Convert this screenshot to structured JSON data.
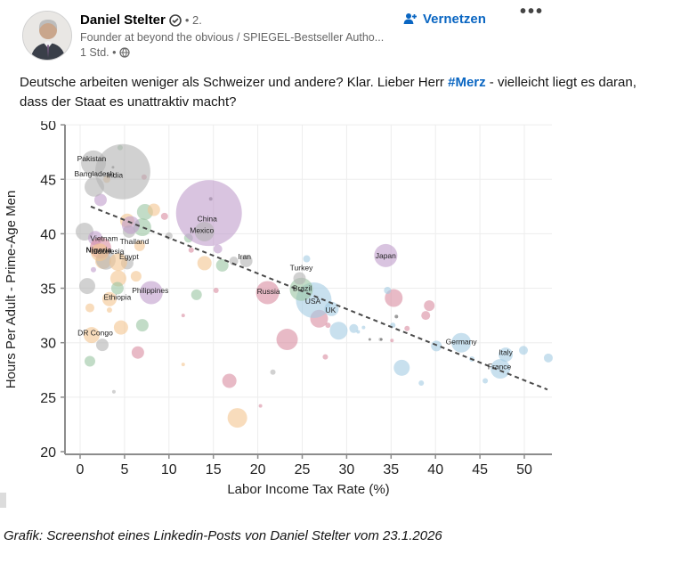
{
  "post": {
    "author": "Daniel Stelter",
    "degree": "• 2.",
    "headline": "Founder at beyond the obvious / SPIEGEL-Bestseller Autho...",
    "time": "1 Std. •",
    "connect_label": "Vernetzen",
    "more_label": "•••",
    "text_before_hashtag": "Deutsche arbeiten weniger als Schweizer und andere? Klar. Lieber Herr ",
    "hashtag": "#Merz",
    "text_after_hashtag": " - vielleicht liegt es daran, dass der Staat es unattraktiv macht?",
    "accent_color": "#0a66c2"
  },
  "caption": "Grafik: Screenshot eines Linkedin-Posts von Daniel Stelter vom 23.1.2026",
  "chart_data": {
    "type": "scatter",
    "xlabel": "Labor Income Tax Rate (%)",
    "ylabel": "Hours Per Adult - Prime-Age Men",
    "xlim": [
      0,
      53
    ],
    "ylim": [
      20,
      50
    ],
    "xticks": [
      0,
      5,
      10,
      15,
      20,
      25,
      30,
      35,
      40,
      45,
      50
    ],
    "yticks": [
      20,
      25,
      30,
      35,
      40,
      45,
      50
    ],
    "grid": true,
    "trendline": {
      "x1": 1.2,
      "y1": 42.5,
      "x2": 52.6,
      "y2": 25.7
    },
    "colors": {
      "gray": "#b3b3b3",
      "purple": "#bf9ccc",
      "pink": "#d98ca0",
      "green": "#99c4a1",
      "blue": "#a3cce3",
      "orange": "#f3c48f",
      "dark": "#5a5a5a"
    },
    "labeled_points": [
      {
        "name": "Pakistan",
        "x": 1.5,
        "y": 46.5,
        "r": 14,
        "c": "gray",
        "lx": 1.3,
        "ly": 46.9
      },
      {
        "name": "India",
        "x": 4.8,
        "y": 45.7,
        "r": 31,
        "c": "gray",
        "lx": 3.9,
        "ly": 45.4
      },
      {
        "name": "Bangladesh",
        "x": 1.6,
        "y": 44.3,
        "r": 11,
        "c": "gray",
        "lx": 1.6,
        "ly": 45.5
      },
      {
        "name": "China",
        "x": 14.5,
        "y": 41.9,
        "r": 37,
        "c": "purple",
        "lx": 14.3,
        "ly": 41.4
      },
      {
        "name": "Mexico",
        "x": 14.0,
        "y": 40.2,
        "r": 11,
        "c": "gray",
        "lx": 13.7,
        "ly": 40.3
      },
      {
        "name": "Vietnam",
        "x": 2.3,
        "y": 38.7,
        "r": 12,
        "c": "pink",
        "lx": 2.7,
        "ly": 39.6
      },
      {
        "name": "Thailand",
        "x": 5.7,
        "y": 40.8,
        "r": 10,
        "c": "purple",
        "lx": 6.1,
        "ly": 39.3
      },
      {
        "name": "Nigeria",
        "x": 2.2,
        "y": 38.3,
        "r": 10,
        "c": "orange",
        "lx": 2.1,
        "ly": 38.5,
        "bold": true
      },
      {
        "name": "Indonesia",
        "x": 2.9,
        "y": 37.6,
        "r": 11,
        "c": "gray",
        "lx": 3.1,
        "ly": 38.4
      },
      {
        "name": "Egypt",
        "x": 4.3,
        "y": 37.4,
        "r": 10,
        "c": "orange",
        "lx": 5.5,
        "ly": 37.9
      },
      {
        "name": "Iran",
        "x": 18.7,
        "y": 37.5,
        "r": 7,
        "c": "gray",
        "lx": 18.5,
        "ly": 37.9
      },
      {
        "name": "Turkey",
        "x": 24.7,
        "y": 35.9,
        "r": 7,
        "c": "gray",
        "lx": 24.9,
        "ly": 36.9
      },
      {
        "name": "Japan",
        "x": 34.4,
        "y": 38.0,
        "r": 13,
        "c": "purple",
        "lx": 34.4,
        "ly": 38.0
      },
      {
        "name": "Philippines",
        "x": 8.0,
        "y": 34.6,
        "r": 13,
        "c": "purple",
        "lx": 7.9,
        "ly": 34.8
      },
      {
        "name": "Ethiopia",
        "x": 3.3,
        "y": 34.0,
        "r": 8,
        "c": "orange",
        "lx": 4.2,
        "ly": 34.2
      },
      {
        "name": "Russia",
        "x": 21.1,
        "y": 34.6,
        "r": 13,
        "c": "pink",
        "lx": 21.2,
        "ly": 34.7
      },
      {
        "name": "Brazil",
        "x": 24.9,
        "y": 34.9,
        "r": 13,
        "c": "green",
        "lx": 25.0,
        "ly": 35.0
      },
      {
        "name": "USA",
        "x": 26.3,
        "y": 33.9,
        "r": 20,
        "c": "blue",
        "lx": 26.2,
        "ly": 33.8
      },
      {
        "name": "UK",
        "x": 28.3,
        "y": 33.1,
        "r": 8,
        "c": "blue",
        "lx": 28.2,
        "ly": 33.0
      },
      {
        "name": "DR Congo",
        "x": 1.3,
        "y": 30.7,
        "r": 9,
        "c": "orange",
        "lx": 1.7,
        "ly": 30.9
      },
      {
        "name": "Germany",
        "x": 42.9,
        "y": 30.0,
        "r": 11,
        "c": "blue",
        "lx": 42.9,
        "ly": 30.1
      },
      {
        "name": "Italy",
        "x": 47.9,
        "y": 28.9,
        "r": 8,
        "c": "blue",
        "lx": 47.9,
        "ly": 29.1
      },
      {
        "name": "France",
        "x": 47.3,
        "y": 27.6,
        "r": 11,
        "c": "blue",
        "lx": 47.2,
        "ly": 27.8
      }
    ],
    "points": [
      {
        "x": 0.5,
        "y": 40.2,
        "r": 10,
        "c": "gray"
      },
      {
        "x": 5.5,
        "y": 40.2,
        "r": 7,
        "c": "gray"
      },
      {
        "x": 10.0,
        "y": 39.8,
        "r": 4,
        "c": "gray"
      },
      {
        "x": 17.3,
        "y": 37.5,
        "r": 5,
        "c": "gray"
      },
      {
        "x": 0.8,
        "y": 35.2,
        "r": 9,
        "c": "gray"
      },
      {
        "x": 5.3,
        "y": 37.3,
        "r": 7,
        "c": "gray"
      },
      {
        "x": 2.5,
        "y": 29.8,
        "r": 7,
        "c": "gray"
      },
      {
        "x": 3.8,
        "y": 25.5,
        "r": 2,
        "c": "gray"
      },
      {
        "x": 21.7,
        "y": 27.3,
        "r": 3,
        "c": "gray"
      },
      {
        "x": 33.8,
        "y": 30.3,
        "r": 2,
        "c": "gray"
      },
      {
        "x": 14.7,
        "y": 43.2,
        "r": 2,
        "c": "dark"
      },
      {
        "x": 3.7,
        "y": 46.1,
        "r": 1.5,
        "c": "dark"
      },
      {
        "x": 2.3,
        "y": 43.1,
        "r": 7,
        "c": "purple"
      },
      {
        "x": 1.7,
        "y": 39.6,
        "r": 8,
        "c": "purple"
      },
      {
        "x": 1.5,
        "y": 36.7,
        "r": 3,
        "c": "purple"
      },
      {
        "x": 15.5,
        "y": 38.6,
        "r": 5,
        "c": "purple"
      },
      {
        "x": 26.9,
        "y": 32.2,
        "r": 10,
        "c": "pink"
      },
      {
        "x": 23.3,
        "y": 30.3,
        "r": 12,
        "c": "pink"
      },
      {
        "x": 16.8,
        "y": 26.5,
        "r": 8,
        "c": "pink"
      },
      {
        "x": 35.3,
        "y": 34.1,
        "r": 10,
        "c": "pink"
      },
      {
        "x": 39.3,
        "y": 33.4,
        "r": 6,
        "c": "pink"
      },
      {
        "x": 38.9,
        "y": 32.5,
        "r": 5,
        "c": "pink"
      },
      {
        "x": 27.6,
        "y": 28.7,
        "r": 3,
        "c": "pink"
      },
      {
        "x": 27.9,
        "y": 31.6,
        "r": 3,
        "c": "pink"
      },
      {
        "x": 9.5,
        "y": 41.6,
        "r": 4,
        "c": "pink"
      },
      {
        "x": 12.5,
        "y": 38.5,
        "r": 3,
        "c": "pink"
      },
      {
        "x": 7.2,
        "y": 45.2,
        "r": 3,
        "c": "pink"
      },
      {
        "x": 11.6,
        "y": 32.5,
        "r": 2,
        "c": "pink"
      },
      {
        "x": 6.5,
        "y": 29.1,
        "r": 7,
        "c": "pink"
      },
      {
        "x": 20.3,
        "y": 24.2,
        "r": 2,
        "c": "pink"
      },
      {
        "x": 15.3,
        "y": 34.8,
        "r": 3,
        "c": "pink"
      },
      {
        "x": 36.8,
        "y": 31.3,
        "r": 3,
        "c": "pink"
      },
      {
        "x": 35.1,
        "y": 30.2,
        "r": 2,
        "c": "pink"
      },
      {
        "x": 7.3,
        "y": 42.0,
        "r": 9,
        "c": "green"
      },
      {
        "x": 7.0,
        "y": 40.6,
        "r": 10,
        "c": "green"
      },
      {
        "x": 4.2,
        "y": 35.0,
        "r": 7,
        "c": "green"
      },
      {
        "x": 7.0,
        "y": 31.6,
        "r": 7,
        "c": "green"
      },
      {
        "x": 1.1,
        "y": 28.3,
        "r": 6,
        "c": "green"
      },
      {
        "x": 13.1,
        "y": 34.4,
        "r": 6,
        "c": "green"
      },
      {
        "x": 16.0,
        "y": 37.1,
        "r": 7,
        "c": "green"
      },
      {
        "x": 12.2,
        "y": 39.6,
        "r": 5,
        "c": "green"
      },
      {
        "x": 4.5,
        "y": 47.9,
        "r": 3,
        "c": "green"
      },
      {
        "x": 2.6,
        "y": 37.5,
        "r": 9,
        "c": "orange"
      },
      {
        "x": 4.3,
        "y": 35.9,
        "r": 9,
        "c": "orange"
      },
      {
        "x": 6.3,
        "y": 36.1,
        "r": 6,
        "c": "orange"
      },
      {
        "x": 8.3,
        "y": 42.2,
        "r": 7,
        "c": "orange"
      },
      {
        "x": 5.3,
        "y": 41.2,
        "r": 8,
        "c": "orange"
      },
      {
        "x": 6.7,
        "y": 38.9,
        "r": 6,
        "c": "orange"
      },
      {
        "x": 1.1,
        "y": 33.2,
        "r": 5,
        "c": "orange"
      },
      {
        "x": 3.3,
        "y": 33.0,
        "r": 3,
        "c": "orange"
      },
      {
        "x": 4.6,
        "y": 31.4,
        "r": 8,
        "c": "orange"
      },
      {
        "x": 17.7,
        "y": 23.1,
        "r": 11,
        "c": "orange"
      },
      {
        "x": 11.6,
        "y": 28.0,
        "r": 2,
        "c": "orange"
      },
      {
        "x": 3.0,
        "y": 45.0,
        "r": 4,
        "c": "orange"
      },
      {
        "x": 14.0,
        "y": 37.3,
        "r": 8,
        "c": "orange"
      },
      {
        "x": 29.1,
        "y": 31.1,
        "r": 10,
        "c": "blue"
      },
      {
        "x": 30.8,
        "y": 31.3,
        "r": 5,
        "c": "blue"
      },
      {
        "x": 34.6,
        "y": 34.8,
        "r": 4,
        "c": "blue"
      },
      {
        "x": 25.5,
        "y": 37.7,
        "r": 4,
        "c": "blue"
      },
      {
        "x": 36.2,
        "y": 27.7,
        "r": 9,
        "c": "blue"
      },
      {
        "x": 40.1,
        "y": 29.7,
        "r": 6,
        "c": "blue"
      },
      {
        "x": 44.1,
        "y": 28.5,
        "r": 3,
        "c": "blue"
      },
      {
        "x": 49.9,
        "y": 29.3,
        "r": 5,
        "c": "blue"
      },
      {
        "x": 52.7,
        "y": 28.6,
        "r": 5,
        "c": "blue"
      },
      {
        "x": 45.6,
        "y": 26.5,
        "r": 3,
        "c": "blue"
      },
      {
        "x": 38.4,
        "y": 26.3,
        "r": 3,
        "c": "blue"
      },
      {
        "x": 31.3,
        "y": 31.0,
        "r": 2,
        "c": "blue"
      },
      {
        "x": 31.9,
        "y": 31.4,
        "r": 2,
        "c": "blue"
      },
      {
        "x": 35.2,
        "y": 31.6,
        "r": 3,
        "c": "blue"
      },
      {
        "x": 35.6,
        "y": 32.4,
        "r": 2,
        "c": "dark"
      },
      {
        "x": 32.6,
        "y": 30.3,
        "r": 1.5,
        "c": "dark"
      },
      {
        "x": 33.9,
        "y": 30.3,
        "r": 1.5,
        "c": "dark"
      }
    ]
  }
}
